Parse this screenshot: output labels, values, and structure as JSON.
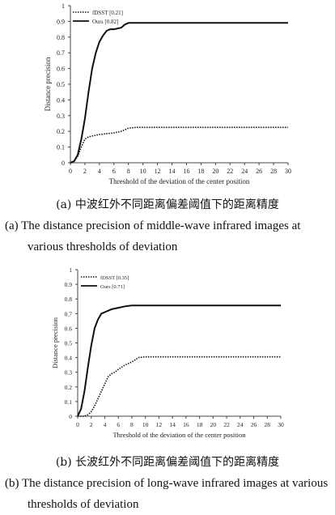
{
  "chart_data": [
    {
      "type": "line",
      "xlabel": "Threshold of the deviation of the center  position",
      "ylabel": "Distance precision",
      "xlim": [
        0,
        30
      ],
      "ylim": [
        0,
        1
      ],
      "xticks": [
        0,
        2,
        4,
        6,
        8,
        10,
        12,
        14,
        16,
        18,
        20,
        22,
        24,
        26,
        28,
        30
      ],
      "yticks": [
        0,
        0.1,
        0.2,
        0.3,
        0.4,
        0.5,
        0.6,
        0.7,
        0.8,
        0.9,
        1
      ],
      "ytick_labels": [
        "0",
        "0.1",
        "0.2",
        "0.3",
        "0.4",
        "0.5",
        "0.6",
        "0.7",
        "0.8",
        "0.9",
        "1"
      ],
      "grid": false,
      "legend": "top-left",
      "series": [
        {
          "name": "fDSST [0.21]",
          "style": "dotted",
          "x": [
            0,
            0.5,
            1,
            1.5,
            2,
            2.5,
            3,
            4,
            5,
            6,
            7,
            7.5,
            8,
            9,
            10,
            12,
            14,
            16,
            20,
            25,
            30
          ],
          "y": [
            0,
            0.01,
            0.04,
            0.1,
            0.15,
            0.165,
            0.17,
            0.18,
            0.185,
            0.19,
            0.2,
            0.21,
            0.22,
            0.225,
            0.225,
            0.225,
            0.225,
            0.225,
            0.225,
            0.225,
            0.225
          ]
        },
        {
          "name": "Ours [0.82]",
          "style": "solid",
          "x": [
            0,
            0.5,
            1,
            1.5,
            2,
            2.5,
            3,
            3.5,
            4,
            4.5,
            5,
            5.5,
            6,
            7,
            7.5,
            8,
            9,
            10,
            12,
            14,
            16,
            20,
            25,
            30
          ],
          "y": [
            0,
            0.01,
            0.05,
            0.15,
            0.28,
            0.45,
            0.6,
            0.7,
            0.77,
            0.81,
            0.84,
            0.85,
            0.85,
            0.86,
            0.88,
            0.89,
            0.89,
            0.89,
            0.89,
            0.89,
            0.89,
            0.89,
            0.89,
            0.89
          ]
        }
      ]
    },
    {
      "type": "line",
      "xlabel": "Threshold of the deviation of the center  position",
      "ylabel": "Distance precision",
      "xlim": [
        0,
        30
      ],
      "ylim": [
        0,
        1
      ],
      "xticks": [
        0,
        2,
        4,
        6,
        8,
        10,
        12,
        14,
        16,
        18,
        20,
        22,
        24,
        26,
        28,
        30
      ],
      "yticks": [
        0,
        0.1,
        0.2,
        0.3,
        0.4,
        0.5,
        0.6,
        0.7,
        0.8,
        0.9,
        1
      ],
      "ytick_labels": [
        "0",
        "0.1",
        "0.2",
        "0.3",
        "0.4",
        "0.5",
        "0.6",
        "0.7",
        "0.8",
        "0.9",
        "1"
      ],
      "grid": false,
      "legend": "top-left",
      "series": [
        {
          "name": "fDSST [0.35]",
          "style": "dotted",
          "x": [
            0,
            0.5,
            1,
            1.5,
            2,
            2.5,
            3,
            3.5,
            4,
            4.5,
            5,
            5.5,
            6,
            7,
            8,
            9,
            10,
            12,
            14,
            16,
            20,
            25,
            30
          ],
          "y": [
            0,
            0,
            0,
            0.01,
            0.03,
            0.07,
            0.12,
            0.17,
            0.22,
            0.27,
            0.29,
            0.3,
            0.32,
            0.35,
            0.37,
            0.4,
            0.405,
            0.405,
            0.405,
            0.405,
            0.405,
            0.405,
            0.405
          ]
        },
        {
          "name": "Ours [0.71]",
          "style": "solid",
          "x": [
            0,
            0.5,
            1,
            1.5,
            2,
            2.5,
            3,
            3.5,
            4,
            4.5,
            5,
            6,
            7,
            8,
            10,
            12,
            14,
            16,
            20,
            25,
            30
          ],
          "y": [
            0,
            0.05,
            0.17,
            0.33,
            0.48,
            0.6,
            0.66,
            0.7,
            0.71,
            0.72,
            0.73,
            0.74,
            0.75,
            0.755,
            0.755,
            0.755,
            0.755,
            0.755,
            0.755,
            0.755,
            0.755
          ]
        }
      ]
    }
  ],
  "captions": {
    "a_zh": "(a)  中波红外不同距离偏差阈值下的距离精度",
    "a_en_1": "(a) The distance precision of middle-wave infrared images at",
    "a_en_2": "various thresholds of deviation",
    "b_zh": "(b)  长波红外不同距离偏差阈值下的距离精度",
    "b_en_1": "(b) The distance precision of long-wave infrared images at various",
    "b_en_2": "thresholds of deviation"
  }
}
